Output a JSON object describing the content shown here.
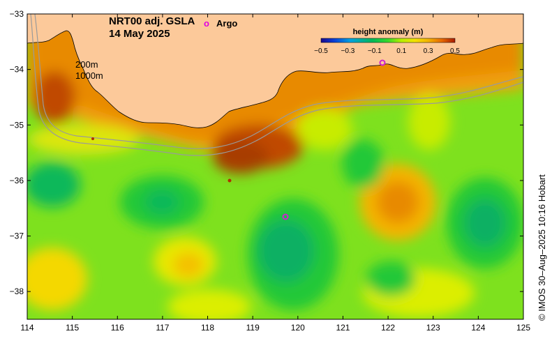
{
  "title": {
    "line1": "NRT00 adj. GSLA",
    "line2": "14 May 2025"
  },
  "legend": {
    "argo_marker": "o",
    "argo_label": "Argo"
  },
  "isobaths": {
    "shallow": "200m",
    "deep": "1000m"
  },
  "colorbar": {
    "label": "height anomaly (m)",
    "ticks": [
      "−0.5",
      "−0.3",
      "−0.1",
      "0.1",
      "0.3",
      "0.5"
    ],
    "values": [
      -0.5,
      -0.3,
      -0.1,
      0.1,
      0.3,
      0.5
    ],
    "colors": [
      "#1a0a8c",
      "#0a3fd8",
      "#00a3e0",
      "#00b85a",
      "#39d92a",
      "#b8f000",
      "#f4e300",
      "#f4b400",
      "#e86a00",
      "#a81c00"
    ]
  },
  "axes": {
    "x_ticks": [
      "114",
      "115",
      "116",
      "117",
      "118",
      "119",
      "120",
      "121",
      "122",
      "123",
      "124",
      "125"
    ],
    "y_ticks": [
      "−33",
      "−34",
      "−35",
      "−36",
      "−37",
      "−38"
    ],
    "lon_range": [
      114,
      125
    ],
    "lat_range": [
      -38.5,
      -33
    ]
  },
  "credit": "© IMOS 30–Aug–2025 10:16 Hobart",
  "colors": {
    "land": "#fcc99a",
    "sea_base": "#7ee11e",
    "isobath": "#9a9a9a",
    "coast": "#000000"
  }
}
